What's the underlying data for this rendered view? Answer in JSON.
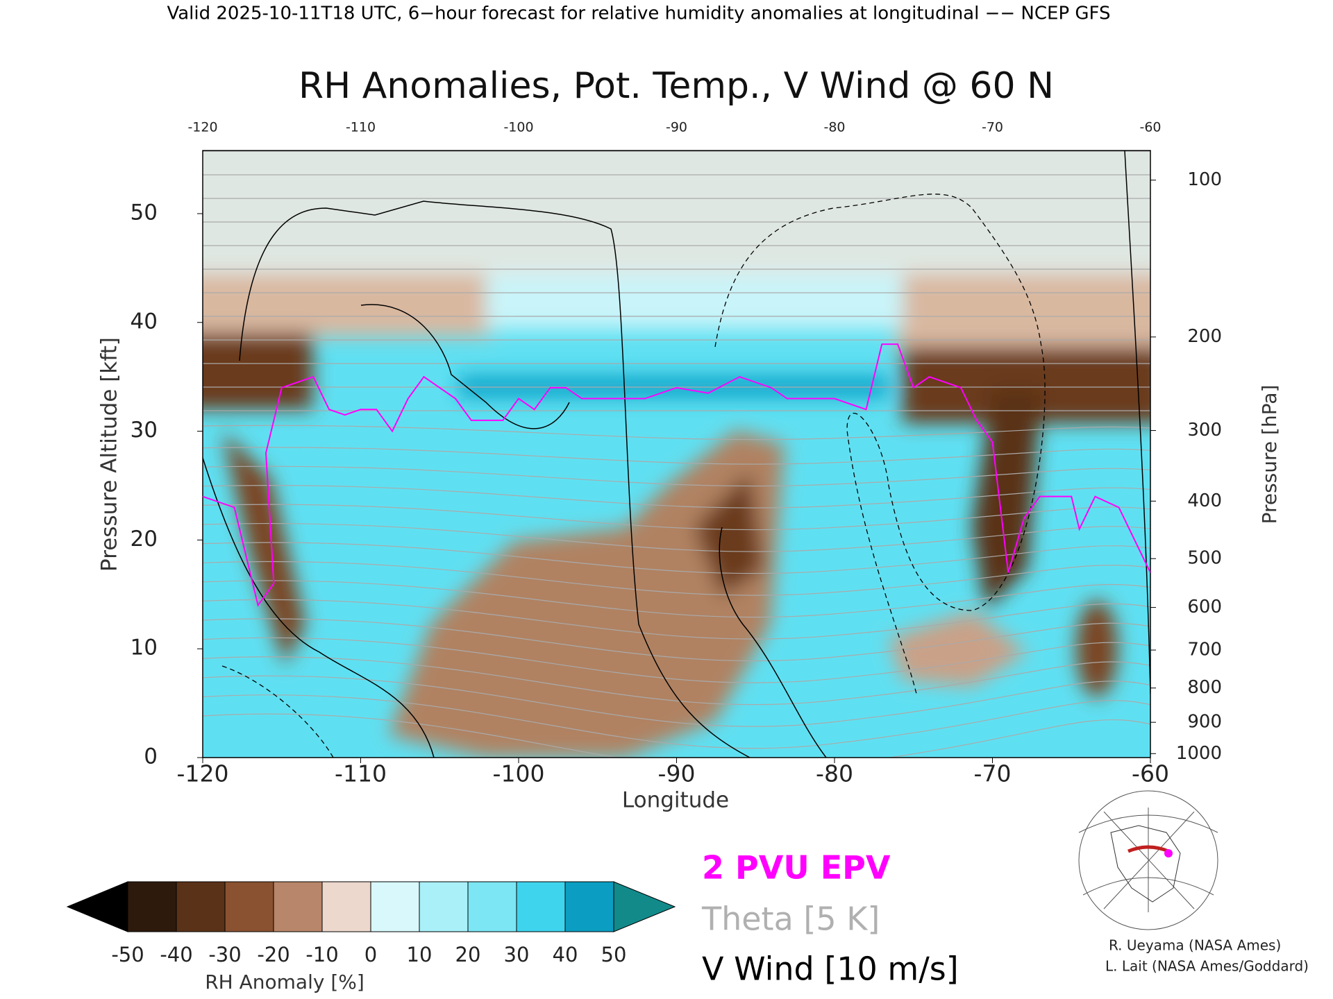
{
  "header": "Valid 2025-10-11T18 UTC, 6−hour forecast for relative humidity anomalies at longitudinal −− NCEP GFS",
  "chart_data": {
    "type": "contour",
    "title": "RH Anomalies, Pot. Temp., V Wind @ 60 N",
    "xlabel": "Longitude",
    "ylabel": "Pressure Altitude [kft]",
    "y2label": "Pressure [hPa]",
    "xlim": [
      -120,
      -60
    ],
    "xticks": [
      -120,
      -110,
      -100,
      -90,
      -80,
      -70,
      -60
    ],
    "ylim": [
      0,
      55.8
    ],
    "yticks": [
      0,
      10,
      20,
      30,
      40,
      50
    ],
    "y2lim": [
      1013.25,
      87.7
    ],
    "y2ticks": [
      100,
      200,
      300,
      400,
      500,
      600,
      700,
      800,
      900,
      1000
    ],
    "y2scale": "pressure",
    "series": [
      {
        "name": "2 PVU EPV",
        "color": "#ff00ff",
        "x": [
          -120,
          -118,
          -116.5,
          -115.5,
          -116,
          -115,
          -113,
          -112,
          -111,
          -110,
          -109,
          -108,
          -107,
          -106,
          -105,
          -104,
          -103,
          -101,
          -100,
          -99,
          -98,
          -97,
          -96,
          -94,
          -92,
          -90,
          -88,
          -86,
          -84,
          -83,
          -81,
          -80,
          -78,
          -77,
          -76,
          -75,
          -74,
          -72,
          -71,
          -70,
          -69,
          -68,
          -67,
          -65,
          -64.5,
          -63.5,
          -62,
          -61,
          -60
        ],
        "values": [
          24,
          23,
          14,
          16,
          28,
          34,
          35,
          32,
          31.5,
          32,
          32,
          30,
          33,
          35,
          34,
          33,
          31,
          31,
          33,
          32,
          34,
          34,
          33,
          33,
          33,
          34,
          33.5,
          35,
          34,
          33,
          33,
          33,
          32,
          38,
          38,
          34,
          35,
          34,
          31,
          29,
          17,
          22,
          24,
          24,
          21,
          24,
          23,
          20,
          17
        ]
      }
    ],
    "contour_legend": [
      {
        "name": "Theta [5 K]",
        "color": "#b0b0b0"
      },
      {
        "name": "V Wind [10 m/s]",
        "color": "#000000"
      }
    ],
    "colorbar": {
      "label": "RH Anomaly [%]",
      "ticks": [
        -50,
        -40,
        -30,
        -20,
        -10,
        0,
        10,
        20,
        30,
        40,
        50
      ],
      "colors": [
        "#2e1a0d",
        "#5a3218",
        "#8a5230",
        "#b8866a",
        "#ecd8cc",
        "#d8f8fb",
        "#aaf0f8",
        "#7ce6f4",
        "#3fd4ee",
        "#0b9ec2"
      ],
      "under": "#000000",
      "over": "#128a8a"
    },
    "credits": [
      "R. Ueyama (NASA Ames)",
      "L. Lait (NASA Ames/Goddard)"
    ]
  }
}
